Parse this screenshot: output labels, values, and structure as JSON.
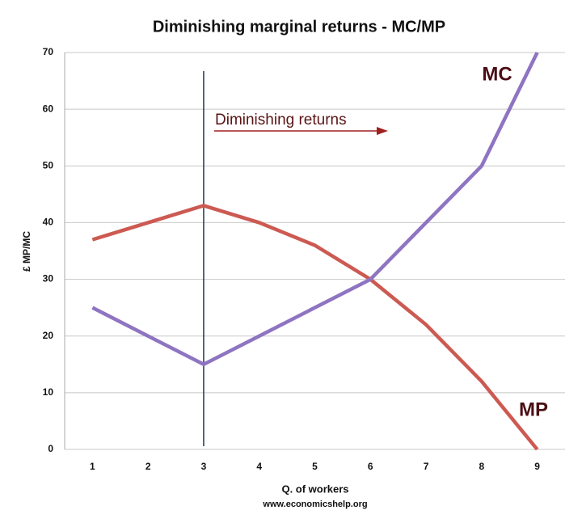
{
  "chart_data": {
    "type": "line",
    "title": "Diminishing marginal returns - MC/MP",
    "x_label": "Q. of workers",
    "y_label": "£ MP/MC",
    "source": "www.economicshelp.org",
    "annotation": "Diminishing returns",
    "vline_x": 3,
    "x": [
      1,
      2,
      3,
      4,
      5,
      6,
      7,
      8,
      9
    ],
    "series": [
      {
        "name": "MP",
        "color": "#cc5a52",
        "values": [
          37,
          40,
          43,
          40,
          36,
          30,
          22,
          12,
          0
        ]
      },
      {
        "name": "MC",
        "color": "#8f74c2",
        "values": [
          25,
          20,
          15,
          20,
          25,
          30,
          40,
          50,
          70
        ]
      }
    ],
    "xlim": [
      0.5,
      9.5
    ],
    "xticks": [
      1,
      2,
      3,
      4,
      5,
      6,
      7,
      8,
      9
    ],
    "ylim": [
      0,
      70
    ],
    "yticks": [
      0,
      10,
      20,
      30,
      40,
      50,
      60,
      70
    ],
    "grid": true
  }
}
